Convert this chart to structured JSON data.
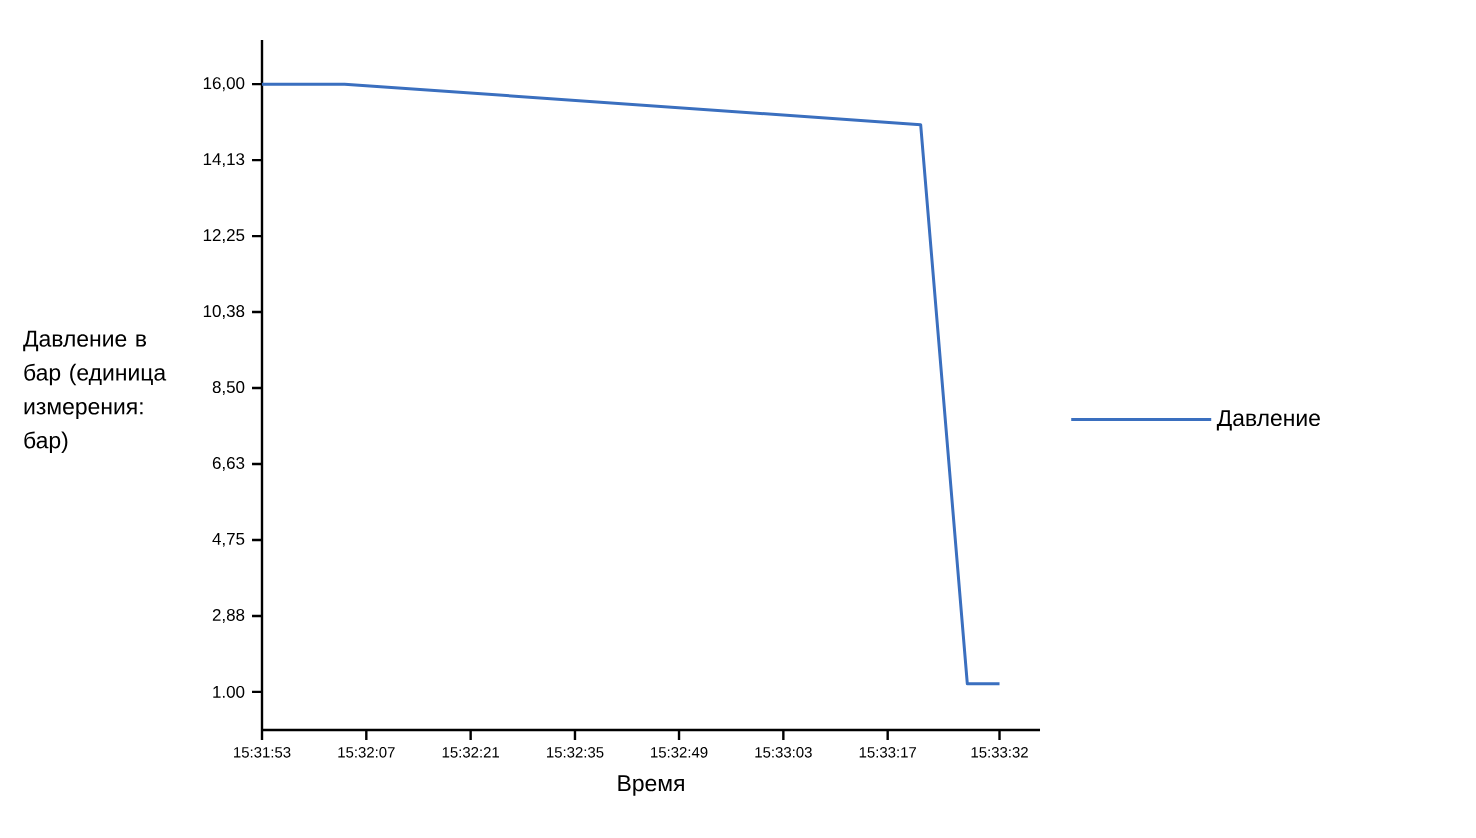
{
  "chart_data": {
    "type": "line",
    "xlabel": "Время",
    "ylabel": "Давление в бар (единица измерения: бар)",
    "x": [
      15.53139,
      15.53447,
      15.55595,
      15.55769,
      15.55889
    ],
    "series": [
      {
        "name": "Давление",
        "color": "#3a6fbf",
        "values": [
          16,
          16,
          15.0,
          1.2,
          1.2
        ]
      }
    ],
    "xlim": [
      15.53139,
      15.5604
    ],
    "ylim": [
      0.06,
      17.09
    ],
    "xticks": [
      {
        "value": 15.53139,
        "label": "15:31:53"
      },
      {
        "value": 15.53528,
        "label": "15:32:07"
      },
      {
        "value": 15.53917,
        "label": "15:32:21"
      },
      {
        "value": 15.54306,
        "label": "15:32:35"
      },
      {
        "value": 15.54694,
        "label": "15:32:49"
      },
      {
        "value": 15.55083,
        "label": "15:33:03"
      },
      {
        "value": 15.55472,
        "label": "15:33:17"
      },
      {
        "value": 15.55889,
        "label": "15:33:32"
      }
    ],
    "yticks": [
      {
        "value": 1,
        "label": "1.00"
      },
      {
        "value": 2.875,
        "label": "2,88"
      },
      {
        "value": 4.75,
        "label": "4,75"
      },
      {
        "value": 6.625,
        "label": "6,63"
      },
      {
        "value": 8.5,
        "label": "8,50"
      },
      {
        "value": 10.375,
        "label": "10,38"
      },
      {
        "value": 12.25,
        "label": "12,25"
      },
      {
        "value": 14.125,
        "label": "14,13"
      },
      {
        "value": 16,
        "label": "16,00"
      }
    ],
    "legend": "right",
    "marker": "none",
    "line_style": "solid"
  }
}
